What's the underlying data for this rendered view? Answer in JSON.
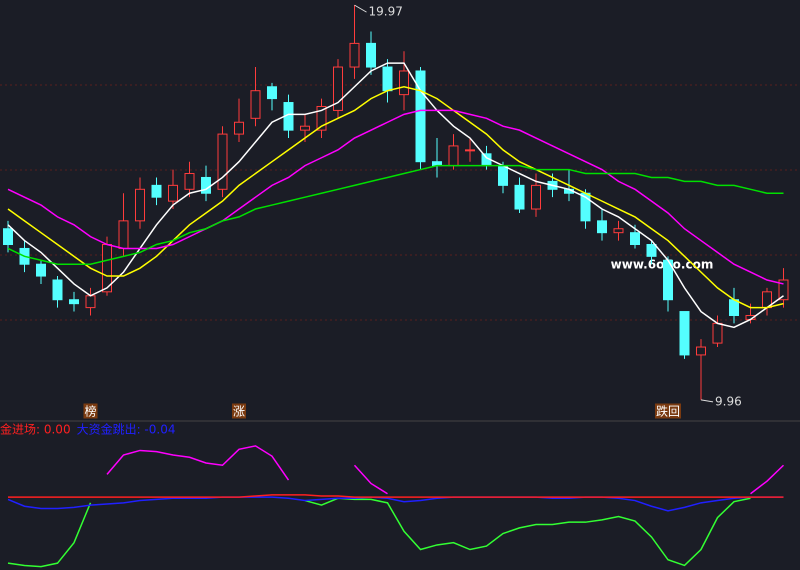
{
  "chart_data": [
    {
      "type": "candlestick",
      "categories": [
        null,
        null,
        null,
        null,
        null,
        null,
        null,
        null,
        null,
        null,
        null,
        null,
        null,
        null,
        null,
        null,
        null,
        null,
        null,
        null,
        null,
        null,
        null,
        null,
        null,
        null,
        null,
        null,
        null,
        null,
        null,
        null,
        null,
        null,
        null,
        null,
        null,
        null,
        null,
        null,
        null,
        null,
        null,
        null,
        null,
        null,
        null,
        null
      ],
      "open": [
        14.3,
        13.8,
        13.4,
        13.0,
        12.5,
        12.3,
        12.7,
        13.8,
        14.5,
        15.4,
        15.0,
        15.3,
        15.6,
        15.3,
        16.7,
        17.1,
        17.9,
        17.5,
        16.8,
        16.8,
        17.3,
        18.4,
        19.0,
        18.4,
        17.7,
        18.3,
        16.0,
        15.9,
        16.3,
        16.2,
        15.9,
        15.4,
        14.8,
        15.5,
        15.3,
        15.2,
        14.5,
        14.2,
        14.2,
        13.9,
        13.5,
        12.2,
        11.1,
        11.4,
        12.5,
        12.0,
        12.3,
        12.5
      ],
      "high": [
        14.5,
        14.0,
        13.5,
        13.1,
        12.7,
        12.8,
        14.1,
        15.2,
        15.6,
        15.6,
        15.8,
        16.0,
        15.9,
        16.9,
        17.6,
        18.4,
        18.0,
        17.7,
        17.2,
        17.6,
        18.6,
        19.97,
        19.3,
        18.6,
        18.8,
        18.4,
        16.6,
        16.7,
        16.6,
        16.4,
        16.0,
        15.6,
        15.7,
        15.7,
        15.8,
        15.3,
        14.8,
        14.5,
        14.4,
        14.0,
        13.6,
        12.2,
        11.5,
        12.1,
        12.8,
        12.4,
        12.8,
        13.3
      ],
      "low": [
        13.7,
        13.2,
        12.9,
        12.3,
        12.2,
        12.1,
        12.6,
        13.6,
        14.3,
        14.9,
        14.8,
        15.1,
        15.0,
        15.1,
        16.5,
        16.9,
        17.3,
        16.6,
        16.5,
        16.6,
        17.1,
        18.1,
        18.2,
        17.5,
        17.3,
        15.8,
        15.6,
        15.8,
        16.0,
        15.8,
        15.2,
        14.7,
        14.6,
        15.1,
        15.0,
        14.3,
        14.0,
        14.0,
        13.8,
        13.4,
        12.2,
        11.0,
        9.96,
        11.3,
        11.9,
        11.9,
        12.1,
        12.3
      ],
      "close": [
        13.9,
        13.4,
        13.1,
        12.5,
        12.4,
        12.6,
        13.9,
        14.5,
        15.3,
        15.1,
        15.4,
        15.7,
        15.2,
        16.7,
        17.0,
        17.8,
        17.6,
        16.8,
        16.9,
        17.4,
        18.4,
        19.0,
        18.4,
        17.8,
        18.3,
        16.0,
        15.9,
        16.4,
        16.3,
        15.9,
        15.4,
        14.8,
        15.4,
        15.3,
        15.2,
        14.5,
        14.2,
        14.3,
        13.9,
        13.6,
        12.5,
        11.1,
        11.3,
        11.9,
        12.1,
        12.1,
        12.7,
        13.0
      ],
      "up_color": "#ff3c3c",
      "down_color": "#54ffff",
      "series": [
        {
          "color": "#ffffff",
          "values": [
            14.4,
            14.0,
            13.7,
            13.3,
            12.9,
            12.6,
            12.8,
            13.2,
            13.8,
            14.4,
            14.9,
            15.2,
            15.3,
            15.6,
            16.0,
            16.5,
            17.0,
            17.2,
            17.2,
            17.3,
            17.5,
            17.9,
            18.3,
            18.5,
            18.5,
            17.8,
            17.3,
            16.9,
            16.6,
            16.1,
            15.9,
            15.7,
            15.5,
            15.4,
            15.3,
            15.1,
            14.8,
            14.6,
            14.3,
            14.0,
            13.5,
            12.8,
            12.2,
            11.9,
            11.8,
            12.0,
            12.3,
            12.6
          ]
        },
        {
          "color": "#ffff00",
          "values": [
            14.8,
            14.5,
            14.2,
            13.9,
            13.6,
            13.3,
            13.1,
            13.1,
            13.3,
            13.6,
            14.0,
            14.4,
            14.7,
            15.0,
            15.4,
            15.7,
            16.0,
            16.3,
            16.6,
            16.9,
            17.1,
            17.3,
            17.6,
            17.8,
            17.9,
            17.8,
            17.6,
            17.3,
            17.0,
            16.7,
            16.3,
            16.0,
            15.8,
            15.6,
            15.4,
            15.2,
            15.0,
            14.8,
            14.6,
            14.3,
            14.0,
            13.6,
            13.2,
            12.8,
            12.5,
            12.3,
            12.3,
            12.4
          ]
        },
        {
          "color": "#ff00ff",
          "values": [
            15.3,
            15.1,
            14.9,
            14.6,
            14.4,
            14.1,
            13.9,
            13.8,
            13.8,
            13.8,
            13.9,
            14.1,
            14.3,
            14.5,
            14.8,
            15.1,
            15.4,
            15.6,
            15.9,
            16.1,
            16.3,
            16.6,
            16.8,
            17.0,
            17.2,
            17.3,
            17.3,
            17.3,
            17.2,
            17.1,
            16.9,
            16.8,
            16.6,
            16.4,
            16.2,
            16.0,
            15.8,
            15.5,
            15.3,
            15.0,
            14.7,
            14.3,
            14.0,
            13.7,
            13.4,
            13.2,
            13.0,
            12.9
          ]
        },
        {
          "color": "#00e000",
          "values": [
            13.8,
            13.6,
            13.5,
            13.4,
            13.4,
            13.4,
            13.5,
            13.6,
            13.7,
            13.9,
            14.0,
            14.2,
            14.3,
            14.5,
            14.6,
            14.8,
            14.9,
            15.0,
            15.1,
            15.2,
            15.3,
            15.4,
            15.5,
            15.6,
            15.7,
            15.8,
            15.9,
            15.9,
            15.9,
            15.9,
            15.9,
            15.9,
            15.8,
            15.8,
            15.8,
            15.7,
            15.7,
            15.7,
            15.7,
            15.6,
            15.6,
            15.5,
            15.5,
            15.4,
            15.4,
            15.3,
            15.2,
            15.2
          ]
        }
      ],
      "ylim": [
        9.45,
        20.1
      ],
      "signals": [
        {
          "at": 5,
          "text": "榜"
        },
        {
          "at": 14,
          "text": "涨"
        },
        {
          "at": 40,
          "text": "跌回"
        }
      ],
      "watermark": "www.6o7o.com"
    },
    {
      "type": "line",
      "labels": [
        {
          "text": "金进场: 0.00",
          "color": "#ff2020"
        },
        {
          "text": "大资金跳出: -0.04",
          "color": "#2020ff"
        }
      ],
      "categories": [
        null,
        null,
        null,
        null,
        null,
        null,
        null,
        null,
        null,
        null,
        null,
        null,
        null,
        null,
        null,
        null,
        null,
        null,
        null,
        null,
        null,
        null,
        null,
        null,
        null,
        null,
        null,
        null,
        null,
        null,
        null,
        null,
        null,
        null,
        null,
        null,
        null,
        null,
        null,
        null,
        null,
        null,
        null,
        null,
        null,
        null,
        null,
        null
      ],
      "series": [
        {
          "color": "#ff00ff",
          "values": [
            null,
            null,
            null,
            null,
            null,
            null,
            20,
            37,
            41,
            40,
            37,
            35,
            30,
            28,
            42,
            45,
            36,
            15,
            null,
            null,
            null,
            28,
            12,
            3,
            null,
            null,
            null,
            null,
            null,
            null,
            null,
            null,
            null,
            null,
            null,
            null,
            null,
            null,
            null,
            null,
            null,
            null,
            null,
            null,
            null,
            3,
            14,
            28
          ]
        },
        {
          "color": "#33ff33",
          "values": [
            -58,
            -60,
            -61,
            -58,
            -40,
            -5,
            null,
            null,
            null,
            null,
            null,
            null,
            null,
            null,
            null,
            null,
            null,
            null,
            -3,
            -7,
            -1,
            -2,
            -2,
            -5,
            -30,
            -46,
            -42,
            -40,
            -46,
            -43,
            -32,
            -27,
            -24,
            -24,
            -22,
            -22,
            -20,
            -17,
            -21,
            -35,
            -55,
            -60,
            -46,
            -18,
            -4,
            -1,
            null,
            null
          ]
        },
        {
          "color": "#2020ff",
          "values": [
            -2,
            -8,
            -10,
            -10,
            -9,
            -7,
            -6,
            -5,
            -3,
            -2,
            -1,
            -1,
            -1,
            0,
            0,
            0,
            0,
            -1,
            -3,
            -2,
            -1,
            -1,
            0,
            -1,
            -4,
            -3,
            -1,
            0,
            0,
            0,
            0,
            0,
            0,
            -1,
            -1,
            0,
            0,
            -1,
            -3,
            -8,
            -12,
            -9,
            -5,
            -3,
            -1,
            0,
            0,
            0
          ]
        },
        {
          "color": "#ff2020",
          "values": [
            0,
            0,
            0,
            0,
            0,
            0,
            0,
            0,
            0,
            0,
            0,
            0,
            0,
            0,
            0,
            1,
            2,
            2,
            2,
            1,
            1,
            0,
            0,
            0,
            0,
            0,
            0,
            0,
            0,
            0,
            0,
            0,
            0,
            0,
            0,
            0,
            0,
            0,
            0,
            0,
            0,
            0,
            0,
            0,
            0,
            0,
            0,
            0
          ]
        }
      ],
      "ylim": [
        -64,
        66
      ]
    }
  ]
}
